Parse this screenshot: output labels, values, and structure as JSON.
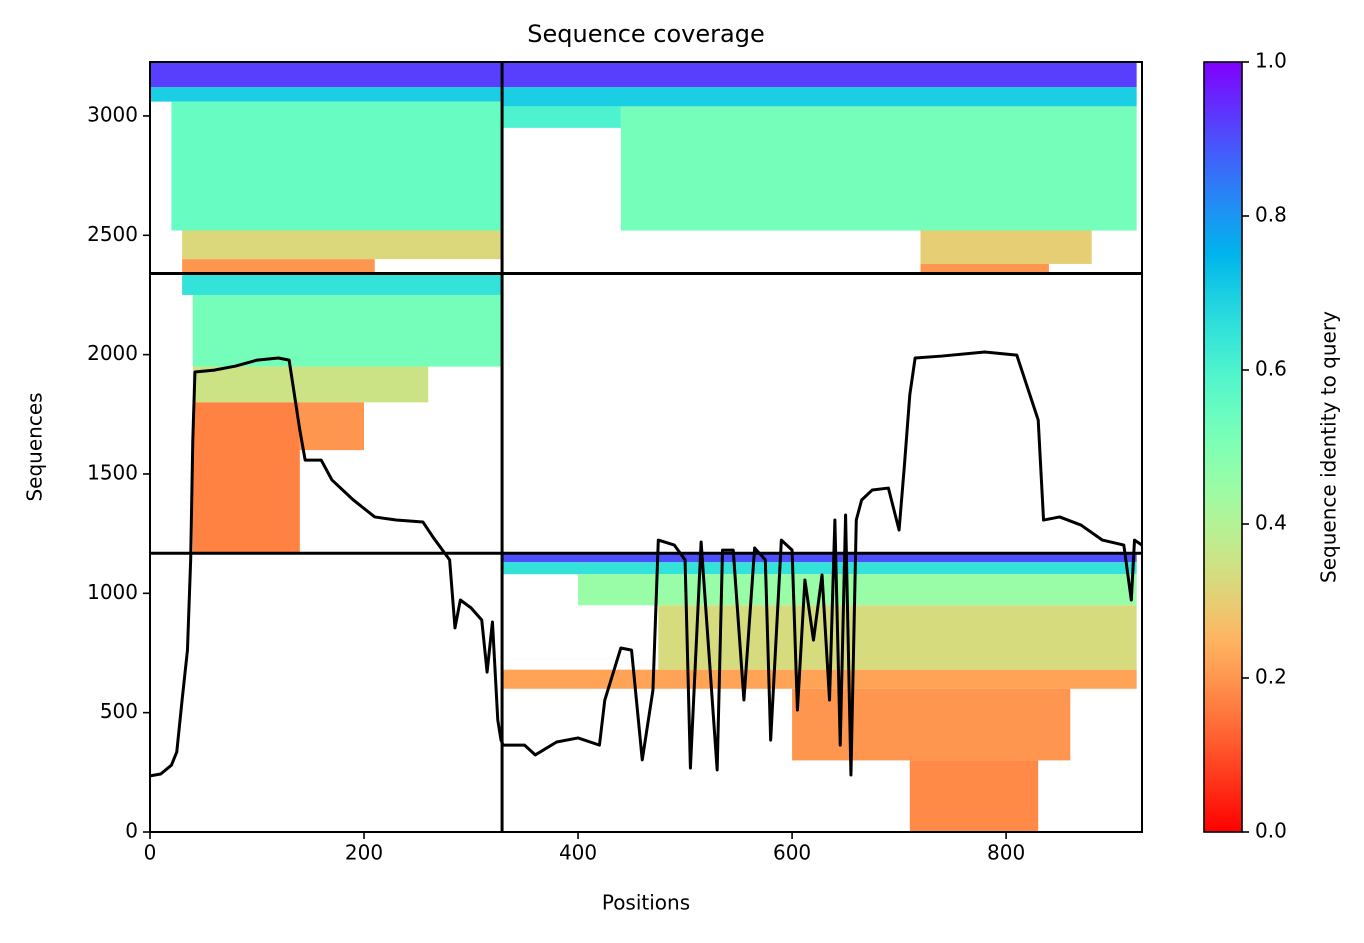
{
  "chart_data": {
    "type": "coverage",
    "title": "Sequence coverage",
    "x_label": "Positions",
    "y_label": "Sequences",
    "xlim": [
      0,
      927
    ],
    "ylim": [
      0,
      3226
    ],
    "xticks": [
      0,
      200,
      400,
      600,
      800
    ],
    "yticks": [
      0,
      500,
      1000,
      1500,
      2000,
      2500,
      3000
    ],
    "dividers": {
      "x": [
        329
      ],
      "y": [
        1168,
        2340
      ]
    },
    "blocks": [
      {
        "x": [
          0,
          329
        ],
        "y": [
          3120,
          3226
        ],
        "identity": 0.92
      },
      {
        "x": [
          0,
          329
        ],
        "y": [
          3060,
          3120
        ],
        "identity": 0.7
      },
      {
        "x": [
          20,
          329
        ],
        "y": [
          2520,
          3060
        ],
        "identity": 0.55
      },
      {
        "x": [
          30,
          329
        ],
        "y": [
          2400,
          2520
        ],
        "identity": 0.32
      },
      {
        "x": [
          30,
          210
        ],
        "y": [
          2340,
          2400
        ],
        "identity": 0.2
      },
      {
        "x": [
          329,
          922
        ],
        "y": [
          3120,
          3226
        ],
        "identity": 0.92
      },
      {
        "x": [
          329,
          922
        ],
        "y": [
          3040,
          3120
        ],
        "identity": 0.7
      },
      {
        "x": [
          440,
          922
        ],
        "y": [
          2520,
          3040
        ],
        "identity": 0.52
      },
      {
        "x": [
          329,
          440
        ],
        "y": [
          2950,
          3040
        ],
        "identity": 0.6
      },
      {
        "x": [
          720,
          880
        ],
        "y": [
          2380,
          2520
        ],
        "identity": 0.3
      },
      {
        "x": [
          720,
          840
        ],
        "y": [
          2340,
          2380
        ],
        "identity": 0.2
      },
      {
        "x": [
          30,
          329
        ],
        "y": [
          2250,
          2340
        ],
        "identity": 0.65
      },
      {
        "x": [
          40,
          329
        ],
        "y": [
          1950,
          2250
        ],
        "identity": 0.52
      },
      {
        "x": [
          40,
          260
        ],
        "y": [
          1800,
          1950
        ],
        "identity": 0.35
      },
      {
        "x": [
          40,
          140
        ],
        "y": [
          1168,
          1800
        ],
        "identity": 0.17
      },
      {
        "x": [
          140,
          200
        ],
        "y": [
          1600,
          1800
        ],
        "identity": 0.2
      },
      {
        "x": [
          329,
          922
        ],
        "y": [
          1130,
          1168
        ],
        "identity": 0.9
      },
      {
        "x": [
          329,
          922
        ],
        "y": [
          1080,
          1130
        ],
        "identity": 0.65
      },
      {
        "x": [
          400,
          922
        ],
        "y": [
          950,
          1080
        ],
        "identity": 0.45
      },
      {
        "x": [
          475,
          922
        ],
        "y": [
          680,
          950
        ],
        "identity": 0.33
      },
      {
        "x": [
          329,
          922
        ],
        "y": [
          600,
          680
        ],
        "identity": 0.22
      },
      {
        "x": [
          600,
          860
        ],
        "y": [
          300,
          600
        ],
        "identity": 0.2
      },
      {
        "x": [
          710,
          830
        ],
        "y": [
          0,
          300
        ],
        "identity": 0.18
      }
    ],
    "coverage": {
      "color": "#000000",
      "x": [
        0,
        10,
        20,
        25,
        30,
        35,
        38,
        40,
        42,
        60,
        80,
        100,
        120,
        130,
        135,
        140,
        145,
        160,
        170,
        190,
        210,
        230,
        255,
        265,
        280,
        285,
        290,
        300,
        310,
        315,
        320,
        325,
        328,
        330,
        350,
        360,
        380,
        400,
        420,
        425,
        440,
        450,
        460,
        470,
        475,
        490,
        500,
        505,
        515,
        530,
        535,
        545,
        555,
        565,
        575,
        580,
        590,
        600,
        605,
        612,
        620,
        628,
        635,
        640,
        645,
        650,
        655,
        660,
        665,
        675,
        690,
        700,
        705,
        710,
        715,
        740,
        780,
        810,
        830,
        835,
        850,
        870,
        890,
        910,
        917,
        920,
        927
      ],
      "values": [
        235,
        243,
        280,
        335,
        553,
        762,
        1140,
        1642,
        1927,
        1935,
        1952,
        1977,
        1986,
        1977,
        1831,
        1684,
        1558,
        1558,
        1475,
        1391,
        1320,
        1307,
        1299,
        1232,
        1140,
        855,
        972,
        939,
        888,
        670,
        880,
        469,
        385,
        364,
        364,
        323,
        377,
        394,
        364,
        553,
        771,
        762,
        302,
        595,
        1223,
        1202,
        1140,
        268,
        1215,
        260,
        1181,
        1181,
        553,
        1190,
        1140,
        385,
        1223,
        1181,
        511,
        1056,
        804,
        1077,
        553,
        1307,
        364,
        1328,
        239,
        1307,
        1391,
        1433,
        1441,
        1265,
        1537,
        1831,
        1986,
        1994,
        2011,
        1998,
        1726,
        1307,
        1320,
        1286,
        1223,
        1202,
        972,
        1223,
        1202
      ]
    },
    "colorbar": {
      "label": "Sequence identity to query",
      "lim": [
        0,
        1
      ],
      "ticks": [
        {
          "value": 0,
          "label": "0.0"
        },
        {
          "value": 0.2,
          "label": "0.2"
        },
        {
          "value": 0.4,
          "label": "0.4"
        },
        {
          "value": 0.6,
          "label": "0.6"
        },
        {
          "value": 0.8,
          "label": "0.8"
        },
        {
          "value": 1,
          "label": "1.0"
        }
      ]
    }
  }
}
